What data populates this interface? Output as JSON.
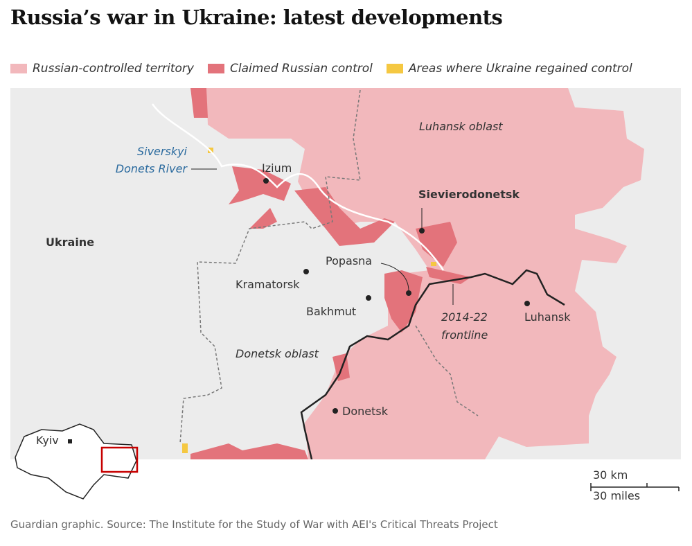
{
  "title": "Russia’s war in Ukraine: latest developments",
  "legend": [
    {
      "label": "Russian-controlled territory",
      "color": "#f2b8bc"
    },
    {
      "label": "Claimed Russian control",
      "color": "#e3737b"
    },
    {
      "label": "Areas where Ukraine regained control",
      "color": "#f5c842"
    }
  ],
  "labels": {
    "luhansk_oblast": "Luhansk oblast",
    "river_1": "Siverskyi",
    "river_2": "Donets River",
    "izium": "Izium",
    "sievierodonetsk": "Sievierodonetsk",
    "ukraine": "Ukraine",
    "popasna": "Popasna",
    "kramatorsk": "Kramatorsk",
    "bakhmut": "Bakhmut",
    "frontline_1": "2014-22",
    "frontline_2": "frontline",
    "luhansk": "Luhansk",
    "donetsk_oblast": "Donetsk oblast",
    "donetsk": "Donetsk",
    "kyiv": "Kyiv"
  },
  "scale": {
    "km": "30 km",
    "miles": "30 miles"
  },
  "source": "Guardian graphic. Source: The Institute for the Study of War with AEI's Critical Threats Project"
}
